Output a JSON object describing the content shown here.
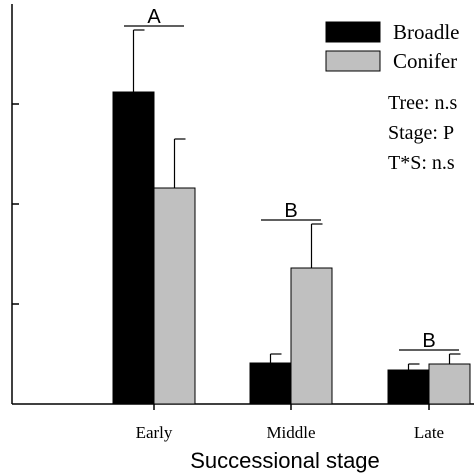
{
  "chart_data": {
    "type": "bar",
    "categories": [
      "Early",
      "Middle",
      "Late"
    ],
    "series": [
      {
        "name": "Broadle",
        "color": "#000000",
        "values": [
          3.12,
          0.41,
          0.34
        ],
        "errors": [
          0.62,
          0.09,
          0.06
        ]
      },
      {
        "name": "Conifer",
        "color": "#c0c0c0",
        "values": [
          2.16,
          1.36,
          0.4
        ],
        "errors": [
          0.49,
          0.44,
          0.1
        ]
      }
    ],
    "significance_letters": [
      "A",
      "B",
      "B"
    ],
    "stats_lines": [
      "Tree: n.s",
      "Stage: P",
      "T*S: n.s"
    ],
    "xlabel": "Successional stage",
    "ylabel": "",
    "ylim": [
      0,
      4
    ],
    "legend": "top-right",
    "grid": false
  }
}
